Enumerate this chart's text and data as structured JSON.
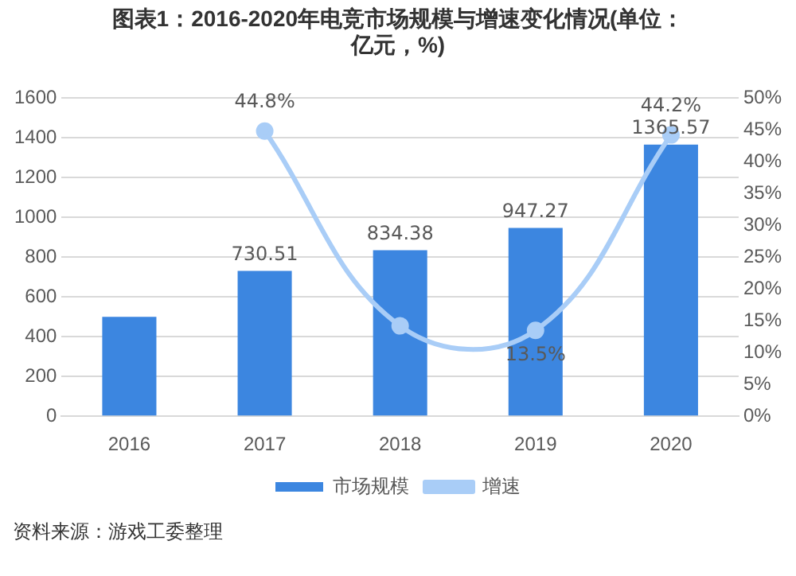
{
  "chart_data": {
    "type": "bar",
    "title": "图表1：2016-2020年电竞市场规模与增速变化情况(单位：亿元，%)",
    "categories": [
      "2016",
      "2017",
      "2018",
      "2019",
      "2020"
    ],
    "series": [
      {
        "name": "市场规模",
        "color": "#3c86e0",
        "values": [
          500,
          730.51,
          834.38,
          947.27,
          1365.57
        ],
        "value_labels": [
          null,
          "730.51",
          "834.38",
          "947.27",
          "1365.57"
        ]
      },
      {
        "name": "增速",
        "type": "line",
        "axis": "y2",
        "color": "#a9cdf7",
        "values": [
          null,
          44.8,
          14.2,
          13.5,
          44.2
        ],
        "value_labels": [
          null,
          "44.8%",
          null,
          "13.5%",
          "44.2%"
        ]
      }
    ],
    "ylim": [
      0,
      1600
    ],
    "yticks": [
      0,
      200,
      400,
      600,
      800,
      1000,
      1200,
      1400,
      1600
    ],
    "y2lim": [
      0,
      50
    ],
    "y2ticks": [
      {
        "value": 0,
        "label": "0%"
      },
      {
        "value": 5,
        "label": "5%"
      },
      {
        "value": 10,
        "label": "10%"
      },
      {
        "value": 15,
        "label": "15%"
      },
      {
        "value": 20,
        "label": "20%"
      },
      {
        "value": 25,
        "label": "25%"
      },
      {
        "value": 30,
        "label": "30%"
      },
      {
        "value": 35,
        "label": "35%"
      },
      {
        "value": 40,
        "label": "40%"
      },
      {
        "value": 45,
        "label": "45%"
      },
      {
        "value": 50,
        "label": "50%"
      }
    ],
    "grid": "y",
    "legend": "bottom",
    "marker": "circle",
    "annotations": [
      "资料来源：游戏工委整理"
    ]
  }
}
